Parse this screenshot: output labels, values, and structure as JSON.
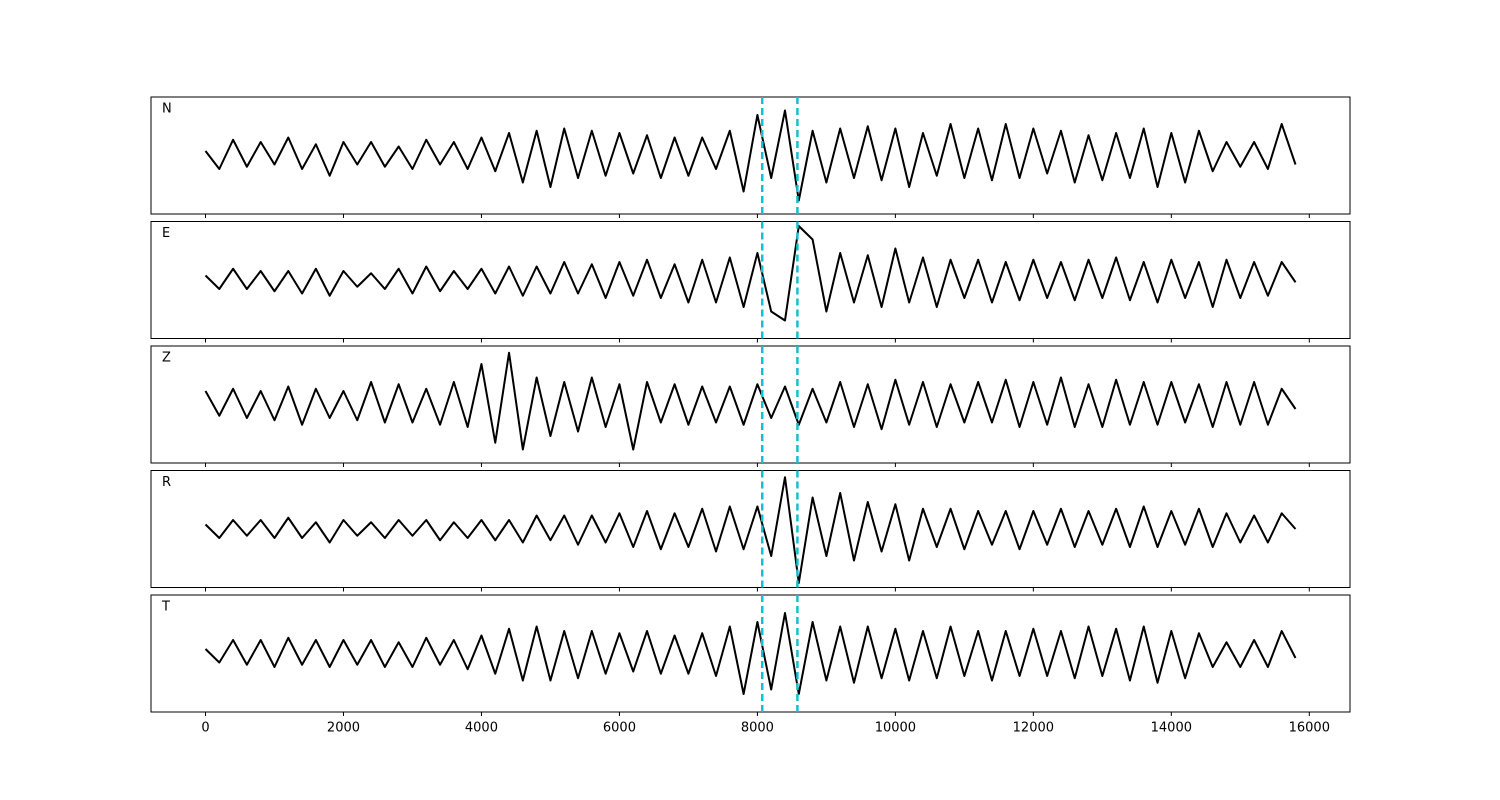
{
  "chart_data": {
    "type": "line",
    "x": [
      0,
      200,
      400,
      600,
      800,
      1000,
      1200,
      1400,
      1600,
      1800,
      2000,
      2200,
      2400,
      2600,
      2800,
      3000,
      3200,
      3400,
      3600,
      3800,
      4000,
      4200,
      4400,
      4600,
      4800,
      5000,
      5200,
      5400,
      5600,
      5800,
      6000,
      6200,
      6400,
      6600,
      6800,
      7000,
      7200,
      7400,
      7600,
      7800,
      8000,
      8200,
      8400,
      8600,
      8800,
      9000,
      9200,
      9400,
      9600,
      9800,
      10000,
      10200,
      10400,
      10600,
      10800,
      11000,
      11200,
      11400,
      11600,
      11800,
      12000,
      12200,
      12400,
      12600,
      12800,
      13000,
      13200,
      13400,
      13600,
      13800,
      14000,
      14200,
      14400,
      14600,
      14800,
      15000,
      15200,
      15400,
      15600,
      15800
    ],
    "xlim": [
      -790,
      16590
    ],
    "xticks": [
      0,
      2000,
      4000,
      6000,
      8000,
      10000,
      12000,
      14000,
      16000
    ],
    "ylim": [
      -1.3,
      1.3
    ],
    "vlines": [
      8070,
      8580
    ],
    "vline_color": "#17becf",
    "series": [
      {
        "name": "N",
        "color": "#000000",
        "values": [
          0.1,
          -0.3,
          0.35,
          -0.25,
          0.3,
          -0.2,
          0.4,
          -0.3,
          0.25,
          -0.45,
          0.3,
          -0.2,
          0.3,
          -0.25,
          0.2,
          -0.3,
          0.35,
          -0.2,
          0.3,
          -0.3,
          0.4,
          -0.35,
          0.5,
          -0.6,
          0.55,
          -0.7,
          0.6,
          -0.5,
          0.55,
          -0.45,
          0.5,
          -0.4,
          0.45,
          -0.5,
          0.4,
          -0.45,
          0.4,
          -0.3,
          0.55,
          -0.8,
          0.9,
          -0.5,
          1.0,
          -1.0,
          0.55,
          -0.6,
          0.6,
          -0.5,
          0.65,
          -0.55,
          0.6,
          -0.7,
          0.5,
          -0.45,
          0.7,
          -0.5,
          0.6,
          -0.55,
          0.7,
          -0.5,
          0.6,
          -0.4,
          0.55,
          -0.6,
          0.45,
          -0.55,
          0.5,
          -0.5,
          0.6,
          -0.7,
          0.5,
          -0.6,
          0.55,
          -0.35,
          0.3,
          -0.25,
          0.3,
          -0.3,
          0.7,
          -0.2
        ]
      },
      {
        "name": "E",
        "color": "#000000",
        "values": [
          0.1,
          -0.2,
          0.25,
          -0.2,
          0.2,
          -0.25,
          0.2,
          -0.3,
          0.25,
          -0.35,
          0.2,
          -0.15,
          0.15,
          -0.2,
          0.25,
          -0.3,
          0.3,
          -0.25,
          0.2,
          -0.2,
          0.25,
          -0.3,
          0.3,
          -0.35,
          0.3,
          -0.3,
          0.4,
          -0.3,
          0.35,
          -0.4,
          0.4,
          -0.35,
          0.45,
          -0.4,
          0.35,
          -0.5,
          0.45,
          -0.5,
          0.5,
          -0.6,
          0.6,
          -0.7,
          -0.9,
          1.2,
          0.9,
          -0.7,
          0.6,
          -0.5,
          0.55,
          -0.6,
          0.7,
          -0.5,
          0.5,
          -0.6,
          0.45,
          -0.4,
          0.45,
          -0.5,
          0.4,
          -0.45,
          0.45,
          -0.4,
          0.4,
          -0.45,
          0.45,
          -0.4,
          0.5,
          -0.45,
          0.4,
          -0.5,
          0.45,
          -0.4,
          0.4,
          -0.6,
          0.45,
          -0.4,
          0.4,
          -0.35,
          0.4,
          -0.05
        ]
      },
      {
        "name": "Z",
        "color": "#000000",
        "values": [
          0.3,
          -0.25,
          0.35,
          -0.3,
          0.3,
          -0.35,
          0.4,
          -0.45,
          0.35,
          -0.3,
          0.3,
          -0.35,
          0.5,
          -0.4,
          0.45,
          -0.4,
          0.35,
          -0.45,
          0.5,
          -0.5,
          0.9,
          -0.85,
          1.15,
          -1.0,
          0.6,
          -0.7,
          0.5,
          -0.6,
          0.6,
          -0.5,
          0.45,
          -1.0,
          0.5,
          -0.4,
          0.45,
          -0.45,
          0.4,
          -0.4,
          0.4,
          -0.45,
          0.45,
          -0.3,
          0.4,
          -0.45,
          0.35,
          -0.4,
          0.5,
          -0.5,
          0.45,
          -0.55,
          0.55,
          -0.45,
          0.5,
          -0.5,
          0.45,
          -0.4,
          0.5,
          -0.4,
          0.55,
          -0.5,
          0.5,
          -0.45,
          0.6,
          -0.5,
          0.45,
          -0.5,
          0.55,
          -0.45,
          0.5,
          -0.45,
          0.5,
          -0.4,
          0.45,
          -0.5,
          0.5,
          -0.45,
          0.5,
          -0.45,
          0.35,
          -0.1
        ]
      },
      {
        "name": "R",
        "color": "#000000",
        "values": [
          0.1,
          -0.2,
          0.2,
          -0.15,
          0.2,
          -0.2,
          0.25,
          -0.2,
          0.15,
          -0.3,
          0.2,
          -0.15,
          0.15,
          -0.2,
          0.2,
          -0.15,
          0.2,
          -0.25,
          0.15,
          -0.2,
          0.2,
          -0.25,
          0.2,
          -0.3,
          0.3,
          -0.25,
          0.3,
          -0.35,
          0.3,
          -0.3,
          0.35,
          -0.4,
          0.4,
          -0.45,
          0.35,
          -0.4,
          0.45,
          -0.5,
          0.5,
          -0.45,
          0.5,
          -0.6,
          1.15,
          -1.2,
          0.7,
          -0.6,
          0.8,
          -0.7,
          0.6,
          -0.5,
          0.55,
          -0.7,
          0.45,
          -0.4,
          0.45,
          -0.45,
          0.4,
          -0.35,
          0.4,
          -0.45,
          0.4,
          -0.35,
          0.45,
          -0.4,
          0.4,
          -0.35,
          0.45,
          -0.4,
          0.5,
          -0.4,
          0.4,
          -0.35,
          0.45,
          -0.4,
          0.35,
          -0.3,
          0.3,
          -0.3,
          0.35,
          0.0
        ]
      },
      {
        "name": "T",
        "color": "#000000",
        "values": [
          0.1,
          -0.2,
          0.3,
          -0.25,
          0.3,
          -0.3,
          0.35,
          -0.25,
          0.3,
          -0.3,
          0.3,
          -0.25,
          0.3,
          -0.3,
          0.25,
          -0.3,
          0.35,
          -0.25,
          0.3,
          -0.35,
          0.4,
          -0.45,
          0.55,
          -0.6,
          0.6,
          -0.6,
          0.5,
          -0.55,
          0.5,
          -0.45,
          0.45,
          -0.4,
          0.5,
          -0.45,
          0.4,
          -0.45,
          0.45,
          -0.5,
          0.6,
          -0.9,
          0.7,
          -0.8,
          0.9,
          -0.9,
          0.7,
          -0.6,
          0.6,
          -0.65,
          0.6,
          -0.55,
          0.55,
          -0.6,
          0.5,
          -0.55,
          0.6,
          -0.5,
          0.5,
          -0.6,
          0.5,
          -0.5,
          0.55,
          -0.5,
          0.5,
          -0.55,
          0.6,
          -0.5,
          0.55,
          -0.6,
          0.6,
          -0.65,
          0.5,
          -0.55,
          0.45,
          -0.3,
          0.25,
          -0.3,
          0.3,
          -0.3,
          0.5,
          -0.1
        ]
      }
    ]
  }
}
